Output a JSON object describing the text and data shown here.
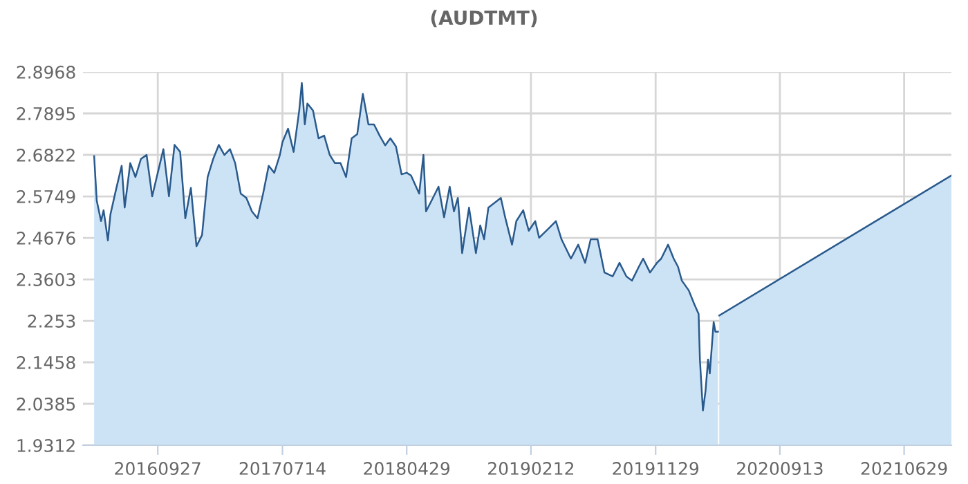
{
  "chart_data": {
    "type": "area",
    "title": "(AUDTMT)",
    "x": [
      "2016-05-02",
      "2016-05-08",
      "2016-05-18",
      "2016-05-24",
      "2016-06-03",
      "2016-06-09",
      "2016-06-22",
      "2016-07-05",
      "2016-07-12",
      "2016-07-25",
      "2016-08-06",
      "2016-08-19",
      "2016-09-01",
      "2016-09-14",
      "2016-09-27",
      "2016-10-10",
      "2016-10-23",
      "2016-11-05",
      "2016-11-18",
      "2016-11-30",
      "2016-12-13",
      "2016-12-26",
      "2017-01-08",
      "2017-01-21",
      "2017-02-03",
      "2017-02-16",
      "2017-03-01",
      "2017-03-14",
      "2017-03-26",
      "2017-04-08",
      "2017-04-21",
      "2017-05-04",
      "2017-05-17",
      "2017-05-30",
      "2017-06-12",
      "2017-06-25",
      "2017-07-08",
      "2017-07-14",
      "2017-07-27",
      "2017-08-09",
      "2017-08-22",
      "2017-08-28",
      "2017-09-04",
      "2017-09-10",
      "2017-09-23",
      "2017-10-06",
      "2017-10-19",
      "2017-11-01",
      "2017-11-13",
      "2017-11-26",
      "2017-12-09",
      "2017-12-22",
      "2018-01-04",
      "2018-01-17",
      "2018-01-30",
      "2018-02-12",
      "2018-02-25",
      "2018-03-10",
      "2018-03-22",
      "2018-04-04",
      "2018-04-17",
      "2018-04-29",
      "2018-05-09",
      "2018-05-28",
      "2018-06-07",
      "2018-06-13",
      "2018-06-29",
      "2018-07-12",
      "2018-07-25",
      "2018-08-07",
      "2018-08-17",
      "2018-08-26",
      "2018-09-05",
      "2018-09-21",
      "2018-10-07",
      "2018-10-17",
      "2018-10-26",
      "2018-11-05",
      "2018-11-18",
      "2018-12-04",
      "2018-12-14",
      "2018-12-30",
      "2019-01-09",
      "2019-01-25",
      "2019-02-07",
      "2019-02-22",
      "2019-03-03",
      "2019-03-26",
      "2019-04-11",
      "2019-04-24",
      "2019-05-16",
      "2019-06-02",
      "2019-06-18",
      "2019-07-01",
      "2019-07-17",
      "2019-08-02",
      "2019-08-21",
      "2019-09-06",
      "2019-09-22",
      "2019-10-05",
      "2019-10-21",
      "2019-10-31",
      "2019-11-16",
      "2019-12-02",
      "2019-12-12",
      "2019-12-28",
      "2020-01-10",
      "2020-01-20",
      "2020-01-29",
      "2020-02-14",
      "2020-02-27",
      "2020-03-08",
      "2020-03-11",
      "2020-03-18",
      "2020-03-24",
      "2020-03-30",
      "2020-04-03",
      "2020-04-12",
      "2020-04-16",
      "2020-04-22",
      "2020-04-24",
      "2020-04-25",
      "2021-10-17"
    ],
    "series": [
      {
        "color": "#2a5a8c",
        "values": [
          2.679,
          2.564,
          2.511,
          2.539,
          2.461,
          2.529,
          2.593,
          2.654,
          2.546,
          2.661,
          2.625,
          2.672,
          2.682,
          2.575,
          2.636,
          2.697,
          2.575,
          2.708,
          2.69,
          2.518,
          2.597,
          2.446,
          2.475,
          2.625,
          2.672,
          2.708,
          2.682,
          2.697,
          2.661,
          2.582,
          2.571,
          2.536,
          2.518,
          2.582,
          2.654,
          2.636,
          2.682,
          2.715,
          2.75,
          2.69,
          2.797,
          2.868,
          2.761,
          2.815,
          2.797,
          2.725,
          2.732,
          2.682,
          2.661,
          2.661,
          2.625,
          2.725,
          2.736,
          2.84,
          2.761,
          2.761,
          2.732,
          2.707,
          2.725,
          2.704,
          2.632,
          2.636,
          2.629,
          2.582,
          2.682,
          2.536,
          2.571,
          2.6,
          2.521,
          2.6,
          2.536,
          2.571,
          2.428,
          2.546,
          2.428,
          2.5,
          2.464,
          2.546,
          2.557,
          2.571,
          2.521,
          2.45,
          2.511,
          2.539,
          2.486,
          2.511,
          2.468,
          2.493,
          2.511,
          2.464,
          2.414,
          2.45,
          2.403,
          2.464,
          2.464,
          2.378,
          2.368,
          2.403,
          2.368,
          2.357,
          2.393,
          2.414,
          2.378,
          2.403,
          2.414,
          2.45,
          2.414,
          2.393,
          2.357,
          2.332,
          2.296,
          2.271,
          2.153,
          2.021,
          2.071,
          2.153,
          2.117,
          2.25,
          2.225,
          2.225,
          null,
          2.267,
          2.629
        ]
      }
    ],
    "xlim": [
      "2016-04-06",
      "2021-10-17"
    ],
    "xticks": [
      {
        "value": "2016-09-27",
        "label": "20160927"
      },
      {
        "value": "2017-07-14",
        "label": "20170714"
      },
      {
        "value": "2018-04-29",
        "label": "20180429"
      },
      {
        "value": "2019-02-12",
        "label": "20190212"
      },
      {
        "value": "2019-11-29",
        "label": "20191129"
      },
      {
        "value": "2020-09-13",
        "label": "20200913"
      },
      {
        "value": "2021-06-29",
        "label": "20210629"
      }
    ],
    "ylim": [
      1.9312,
      2.8968
    ],
    "yticks": [
      1.9312,
      2.0385,
      2.1458,
      2.253,
      2.3603,
      2.4676,
      2.5749,
      2.6822,
      2.7895,
      2.8968
    ],
    "grid": true
  }
}
